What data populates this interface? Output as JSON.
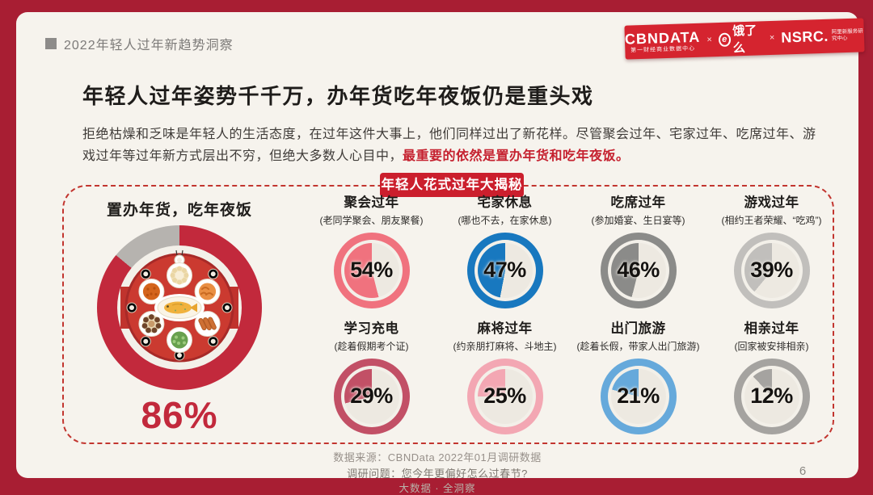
{
  "page": {
    "frame_color": "#A81E33",
    "card_color": "#F6F3ED",
    "page_number": "6"
  },
  "header": {
    "eyebrow": "2022年轻人过年新趋势洞察",
    "banner": {
      "color": "#D5242F",
      "brand1": "CBNDATA",
      "brand1_sub": "第一财经商业数据中心",
      "sep1": "×",
      "eleme_mark": "e",
      "brand2": "饿了么",
      "sep2": "×",
      "brand3": "NSRC.",
      "brand3_sub": "阿里新服务研究中心"
    }
  },
  "main": {
    "title": "年轻人过年姿势千千万，办年货吃年夜饭仍是重头戏",
    "body_text": "拒绝枯燥和乏味是年轻人的生活态度，在过年这件大事上，他们同样过出了新花样。尽管聚会过年、宅家过年、吃席过年、游戏过年等过年新方式层出不穷，但绝大多数人心目中，",
    "body_highlight": "最重要的依然是置办年货和吃年夜饭。",
    "badge": "年轻人花式过年大揭秘"
  },
  "chart_data": {
    "type": "pie",
    "title": "年轻人花式过年大揭秘",
    "unit": "%",
    "legend_position": "none",
    "remainder_color": "#EDE9E1",
    "main": {
      "label": "置办年货，吃年夜饭",
      "value": 86,
      "color": "#C2293C",
      "rest_color": "#B6B3AF"
    },
    "categories": [
      {
        "label": "聚会过年",
        "subtitle": "(老同学聚会、朋友聚餐)",
        "value": 54,
        "color": "#F0727E"
      },
      {
        "label": "宅家休息",
        "subtitle": "(哪也不去，在家休息)",
        "value": 47,
        "color": "#1878BF"
      },
      {
        "label": "吃席过年",
        "subtitle": "(参加婚宴、生日宴等)",
        "value": 46,
        "color": "#8B8B89"
      },
      {
        "label": "游戏过年",
        "subtitle": "(相约王者荣耀、“吃鸡”)",
        "value": 39,
        "color": "#C1BFBC"
      },
      {
        "label": "学习充电",
        "subtitle": "(趁着假期考个证)",
        "value": 29,
        "color": "#C25066"
      },
      {
        "label": "麻将过年",
        "subtitle": "(约亲朋打麻将、斗地主)",
        "value": 25,
        "color": "#F3A7B3"
      },
      {
        "label": "出门旅游",
        "subtitle": "(趁着长假，带家人出门旅游)",
        "value": 21,
        "color": "#66A9DB"
      },
      {
        "label": "相亲过年",
        "subtitle": "(回家被安排相亲)",
        "value": 12,
        "color": "#A5A3A0"
      }
    ]
  },
  "footer": {
    "source": "数据来源：CBNData 2022年01月调研数据",
    "question": "调研问题：您今年更偏好怎么过春节?",
    "brand": "大数据 · 全洞察"
  }
}
